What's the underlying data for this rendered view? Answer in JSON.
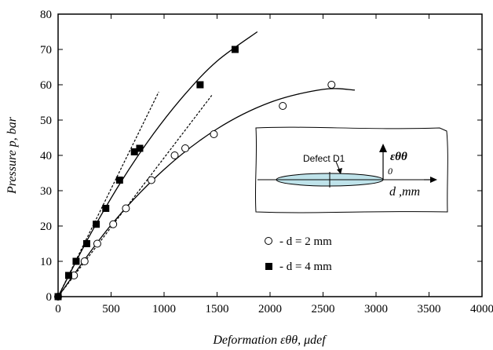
{
  "chart_data": {
    "type": "scatter",
    "xlabel": "Deformation εθθ, μdef",
    "ylabel": "Pressure p, bar",
    "xlim": [
      0,
      4000
    ],
    "ylim": [
      0,
      80
    ],
    "xticks": [
      0,
      500,
      1000,
      1500,
      2000,
      2500,
      3000,
      3500,
      4000
    ],
    "yticks": [
      0,
      10,
      20,
      30,
      40,
      50,
      60,
      70,
      80
    ],
    "grid": false,
    "legend_position": "bottom-center",
    "series": [
      {
        "name": "- d = 2 mm",
        "marker": "open-circle",
        "x": [
          0,
          150,
          250,
          370,
          520,
          640,
          880,
          1100,
          1200,
          1470,
          2120,
          2580
        ],
        "y": [
          0,
          6,
          10,
          15,
          20.5,
          25,
          33,
          40,
          42,
          46,
          54,
          60
        ],
        "fit_curve": {
          "x": [
            0,
            500,
            1000,
            1500,
            2000,
            2500,
            2800
          ],
          "y": [
            0,
            20.3,
            36,
            47.5,
            55,
            58.7,
            58.5
          ]
        },
        "linear_fit": {
          "x": [
            0,
            1450
          ],
          "y": [
            0,
            57
          ]
        }
      },
      {
        "name": "- d = 4 mm",
        "marker": "filled-square",
        "x": [
          0,
          100,
          170,
          270,
          360,
          450,
          580,
          720,
          770,
          1340,
          1670
        ],
        "y": [
          0,
          6,
          10,
          15,
          20.5,
          25,
          33,
          41,
          42,
          60,
          70
        ],
        "fit_curve": {
          "x": [
            0,
            300,
            600,
            900,
            1200,
            1500,
            1880
          ],
          "y": [
            0,
            17.4,
            32.8,
            46.1,
            57.4,
            66.7,
            75
          ]
        },
        "linear_fit": {
          "x": [
            0,
            950
          ],
          "y": [
            0,
            58
          ]
        }
      }
    ],
    "inset": {
      "label": "Defect D1",
      "strain_symbol": "εθθ",
      "origin_label": "0",
      "axis_label": "d ,mm"
    }
  }
}
